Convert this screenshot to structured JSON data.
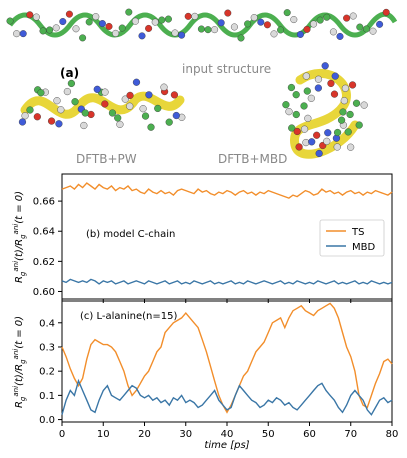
{
  "figure": {
    "panel_a_label": "(a)",
    "input_label": "input structure",
    "pw_label": "DFTB+PW",
    "mbd_label": "DFTB+MBD"
  },
  "chart_data": [
    {
      "type": "line",
      "panel_label": "(b) model C-chain",
      "ylabel": "R_g^{ani}(t)/R_g^{ani}(t = 0)",
      "ylim": [
        0.595,
        0.678
      ],
      "yticks": [
        "0.60",
        "0.62",
        "0.64",
        "0.66"
      ],
      "xlim": [
        0,
        80
      ],
      "legend_placement": "right",
      "series": [
        {
          "name": "TS",
          "color": "#f28e2b",
          "x": [
            0,
            1,
            2,
            3,
            4,
            5,
            6,
            7,
            8,
            9,
            10,
            11,
            12,
            13,
            14,
            15,
            16,
            17,
            18,
            19,
            20,
            21,
            22,
            23,
            24,
            25,
            26,
            27,
            28,
            29,
            30,
            31,
            32,
            33,
            34,
            35,
            36,
            37,
            38,
            39,
            40,
            41,
            42,
            43,
            44,
            45,
            46,
            47,
            48,
            49,
            50,
            51,
            52,
            53,
            54,
            55,
            56,
            57,
            58,
            59,
            60,
            61,
            62,
            63,
            64,
            65,
            66,
            67,
            68,
            69,
            70,
            71,
            72,
            73,
            74,
            75,
            76,
            77,
            78,
            79,
            80
          ],
          "values": [
            0.668,
            0.669,
            0.67,
            0.668,
            0.671,
            0.669,
            0.672,
            0.67,
            0.668,
            0.671,
            0.669,
            0.668,
            0.67,
            0.667,
            0.669,
            0.668,
            0.67,
            0.667,
            0.668,
            0.666,
            0.665,
            0.668,
            0.666,
            0.665,
            0.667,
            0.665,
            0.666,
            0.664,
            0.667,
            0.668,
            0.667,
            0.666,
            0.665,
            0.668,
            0.666,
            0.667,
            0.665,
            0.664,
            0.666,
            0.665,
            0.667,
            0.666,
            0.664,
            0.666,
            0.667,
            0.665,
            0.666,
            0.664,
            0.666,
            0.665,
            0.667,
            0.666,
            0.665,
            0.664,
            0.663,
            0.662,
            0.664,
            0.663,
            0.665,
            0.667,
            0.666,
            0.664,
            0.665,
            0.668,
            0.666,
            0.667,
            0.665,
            0.666,
            0.664,
            0.666,
            0.667,
            0.665,
            0.666,
            0.664,
            0.666,
            0.665,
            0.667,
            0.666,
            0.665,
            0.664,
            0.666
          ]
        },
        {
          "name": "MBD",
          "color": "#3a76a6",
          "x": [
            0,
            1,
            2,
            3,
            4,
            5,
            6,
            7,
            8,
            9,
            10,
            11,
            12,
            13,
            14,
            15,
            16,
            17,
            18,
            19,
            20,
            21,
            22,
            23,
            24,
            25,
            26,
            27,
            28,
            29,
            30,
            31,
            32,
            33,
            34,
            35,
            36,
            37,
            38,
            39,
            40,
            41,
            42,
            43,
            44,
            45,
            46,
            47,
            48,
            49,
            50,
            51,
            52,
            53,
            54,
            55,
            56,
            57,
            58,
            59,
            60,
            61,
            62,
            63,
            64,
            65,
            66,
            67,
            68,
            69,
            70,
            71,
            72,
            73,
            74,
            75,
            76,
            77,
            78,
            79,
            80
          ],
          "values": [
            0.607,
            0.606,
            0.608,
            0.607,
            0.606,
            0.607,
            0.606,
            0.608,
            0.607,
            0.605,
            0.607,
            0.606,
            0.607,
            0.605,
            0.606,
            0.607,
            0.605,
            0.606,
            0.607,
            0.606,
            0.605,
            0.607,
            0.606,
            0.605,
            0.606,
            0.607,
            0.605,
            0.606,
            0.607,
            0.605,
            0.606,
            0.605,
            0.607,
            0.606,
            0.605,
            0.606,
            0.607,
            0.605,
            0.606,
            0.605,
            0.606,
            0.607,
            0.605,
            0.606,
            0.605,
            0.607,
            0.606,
            0.605,
            0.606,
            0.607,
            0.606,
            0.605,
            0.606,
            0.607,
            0.605,
            0.606,
            0.605,
            0.607,
            0.606,
            0.605,
            0.606,
            0.605,
            0.607,
            0.606,
            0.605,
            0.606,
            0.607,
            0.605,
            0.606,
            0.605,
            0.606,
            0.607,
            0.605,
            0.606,
            0.605,
            0.607,
            0.606,
            0.605,
            0.606,
            0.605,
            0.606
          ]
        }
      ]
    },
    {
      "type": "line",
      "panel_label": "(c) L-alanine(n=15)",
      "ylabel": "R_g^{ani}(t)/R_g^{ani}(t = 0)",
      "ylim": [
        -0.01,
        0.49
      ],
      "yticks": [
        "0.0",
        "0.1",
        "0.2",
        "0.3",
        "0.4"
      ],
      "xlim": [
        0,
        80
      ],
      "xticks": [
        "0",
        "10",
        "20",
        "30",
        "40",
        "50",
        "60",
        "70",
        "80"
      ],
      "xlabel": "time [ps]",
      "series": [
        {
          "name": "TS",
          "color": "#f28e2b",
          "x": [
            0,
            1,
            2,
            3,
            4,
            5,
            6,
            7,
            8,
            9,
            10,
            11,
            12,
            13,
            14,
            15,
            16,
            17,
            18,
            19,
            20,
            21,
            22,
            23,
            24,
            25,
            26,
            27,
            28,
            29,
            30,
            31,
            32,
            33,
            34,
            35,
            36,
            37,
            38,
            39,
            40,
            41,
            42,
            43,
            44,
            45,
            46,
            47,
            48,
            49,
            50,
            51,
            52,
            53,
            54,
            55,
            56,
            57,
            58,
            59,
            60,
            61,
            62,
            63,
            64,
            65,
            66,
            67,
            68,
            69,
            70,
            71,
            72,
            73,
            74,
            75,
            76,
            77,
            78,
            79,
            80
          ],
          "values": [
            0.3,
            0.26,
            0.21,
            0.17,
            0.14,
            0.17,
            0.25,
            0.31,
            0.33,
            0.32,
            0.31,
            0.31,
            0.3,
            0.28,
            0.24,
            0.2,
            0.14,
            0.1,
            0.12,
            0.15,
            0.18,
            0.2,
            0.24,
            0.28,
            0.3,
            0.36,
            0.38,
            0.4,
            0.41,
            0.42,
            0.44,
            0.42,
            0.4,
            0.38,
            0.33,
            0.28,
            0.22,
            0.16,
            0.1,
            0.06,
            0.03,
            0.06,
            0.1,
            0.14,
            0.18,
            0.2,
            0.24,
            0.28,
            0.3,
            0.32,
            0.36,
            0.4,
            0.41,
            0.42,
            0.38,
            0.42,
            0.45,
            0.46,
            0.47,
            0.45,
            0.44,
            0.43,
            0.45,
            0.46,
            0.47,
            0.48,
            0.46,
            0.42,
            0.36,
            0.3,
            0.26,
            0.2,
            0.1,
            0.06,
            0.05,
            0.1,
            0.15,
            0.19,
            0.24,
            0.25,
            0.23
          ]
        },
        {
          "name": "MBD",
          "color": "#3a76a6",
          "x": [
            0,
            1,
            2,
            3,
            4,
            5,
            6,
            7,
            8,
            9,
            10,
            11,
            12,
            13,
            14,
            15,
            16,
            17,
            18,
            19,
            20,
            21,
            22,
            23,
            24,
            25,
            26,
            27,
            28,
            29,
            30,
            31,
            32,
            33,
            34,
            35,
            36,
            37,
            38,
            39,
            40,
            41,
            42,
            43,
            44,
            45,
            46,
            47,
            48,
            49,
            50,
            51,
            52,
            53,
            54,
            55,
            56,
            57,
            58,
            59,
            60,
            61,
            62,
            63,
            64,
            65,
            66,
            67,
            68,
            69,
            70,
            71,
            72,
            73,
            74,
            75,
            76,
            77,
            78,
            79,
            80
          ],
          "values": [
            0.02,
            0.08,
            0.12,
            0.1,
            0.16,
            0.12,
            0.08,
            0.04,
            0.03,
            0.08,
            0.12,
            0.14,
            0.1,
            0.09,
            0.08,
            0.1,
            0.12,
            0.14,
            0.13,
            0.1,
            0.09,
            0.1,
            0.08,
            0.09,
            0.07,
            0.08,
            0.06,
            0.09,
            0.08,
            0.1,
            0.07,
            0.08,
            0.07,
            0.05,
            0.06,
            0.08,
            0.1,
            0.12,
            0.08,
            0.06,
            0.04,
            0.05,
            0.1,
            0.14,
            0.12,
            0.1,
            0.08,
            0.07,
            0.05,
            0.06,
            0.08,
            0.07,
            0.09,
            0.08,
            0.06,
            0.07,
            0.05,
            0.04,
            0.06,
            0.08,
            0.1,
            0.12,
            0.14,
            0.15,
            0.12,
            0.1,
            0.08,
            0.05,
            0.03,
            0.06,
            0.1,
            0.12,
            0.1,
            0.08,
            0.04,
            0.02,
            0.05,
            0.08,
            0.09,
            0.07,
            0.08
          ]
        }
      ]
    }
  ]
}
